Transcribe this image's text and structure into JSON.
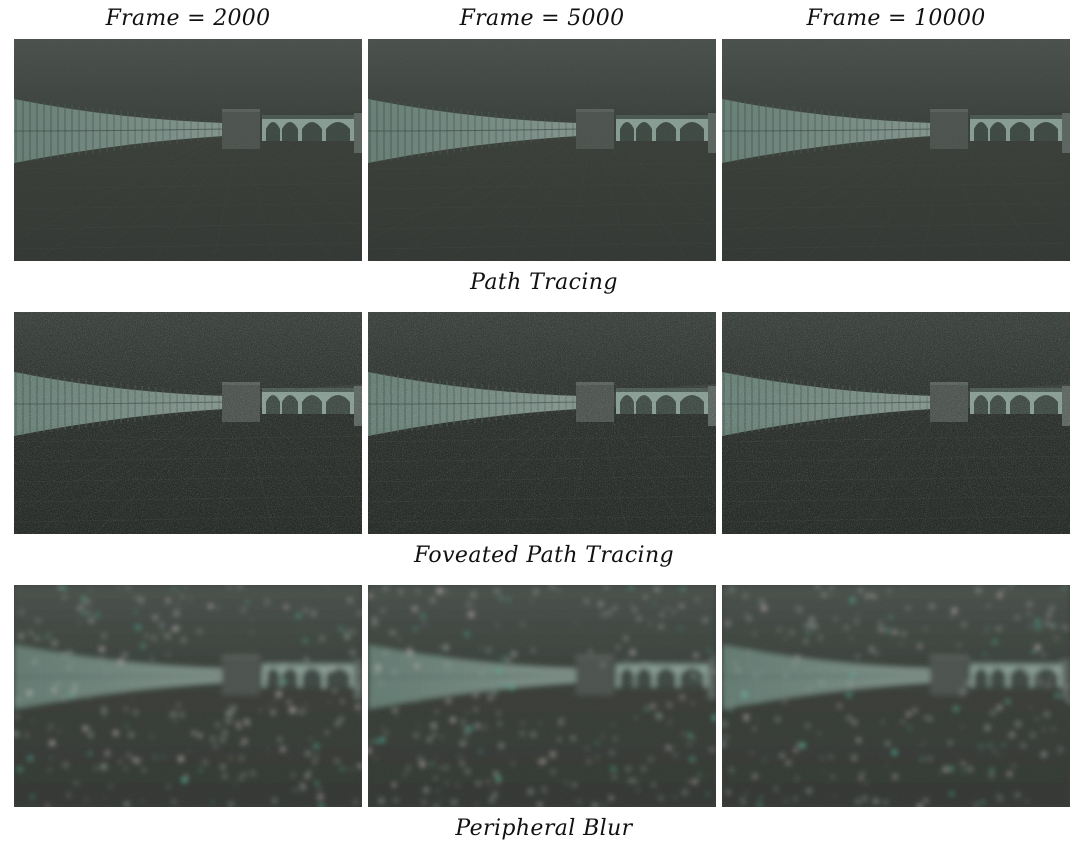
{
  "columns": [
    "Frame = 2000",
    "Frame = 5000",
    "Frame = 10000"
  ],
  "rows": [
    {
      "caption": "Path Tracing",
      "style": "clean"
    },
    {
      "caption": "Foveated Path Tracing",
      "style": "noisy"
    },
    {
      "caption": "Peripheral Blur",
      "style": "blur"
    }
  ]
}
